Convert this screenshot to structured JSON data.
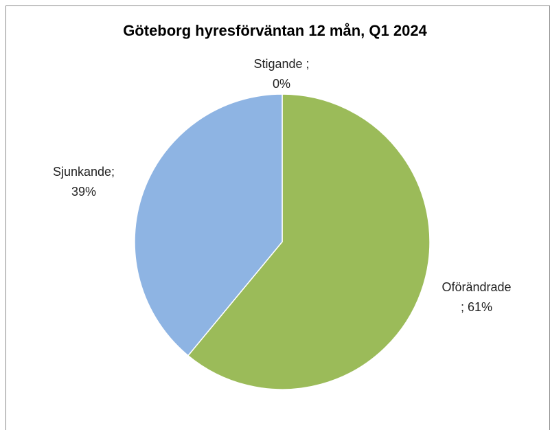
{
  "chart_data": {
    "type": "pie",
    "title": "Göteborg hyresförväntan 12 mån, Q1 2024",
    "values": [
      0,
      61,
      39
    ],
    "value_labels": [
      "Stigande ;\n0%",
      "Oförändrade\n; 61%",
      "Sjunkande;\n39%"
    ],
    "colors": [
      "#c0504d",
      "#9bbb59",
      "#8eb4e3"
    ]
  }
}
